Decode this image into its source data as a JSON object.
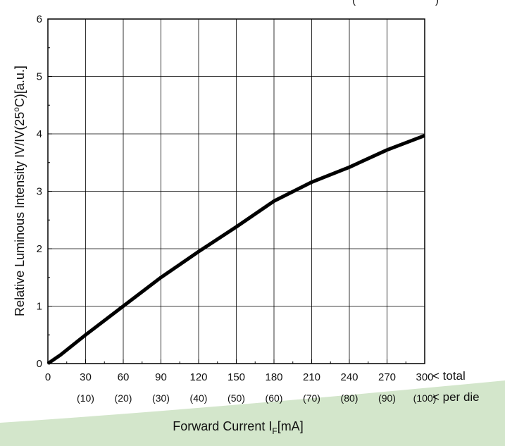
{
  "chart_data": {
    "type": "line",
    "ylabel": "Relative Luminous Intensity IV/IV(25",
    "ylabel_super": "o",
    "ylabel_suffix": "C)[a.u.]",
    "xlabel": "Forward Current I",
    "xlabel_sub": "F",
    "xlabel_suffix": "[mA]",
    "xlim": [
      0,
      300
    ],
    "ylim": [
      0,
      6
    ],
    "grid": true,
    "x_ticks": [
      "0",
      "30",
      "60",
      "90",
      "120",
      "150",
      "180",
      "210",
      "240",
      "270",
      "300"
    ],
    "x_sub_ticks": [
      "(10)",
      "(20)",
      "(30)",
      "(40)",
      "(50)",
      "(60)",
      "(70)",
      "(80)",
      "(90)",
      "(100)"
    ],
    "y_ticks": [
      "0",
      "1",
      "2",
      "3",
      "4",
      "5",
      "6"
    ],
    "x_row_label": "< total",
    "x_sub_row_label": "< per die",
    "series": [
      {
        "x": [
          0,
          10,
          30,
          60,
          90,
          120,
          150,
          180,
          210,
          240,
          270,
          300
        ],
        "values": [
          0,
          0.15,
          0.5,
          1.0,
          1.5,
          1.95,
          2.38,
          2.83,
          3.16,
          3.42,
          3.72,
          3.97
        ]
      }
    ]
  },
  "colors": {
    "line": "#000000",
    "grid": "#000000",
    "decoration": "#cfe3c6"
  }
}
